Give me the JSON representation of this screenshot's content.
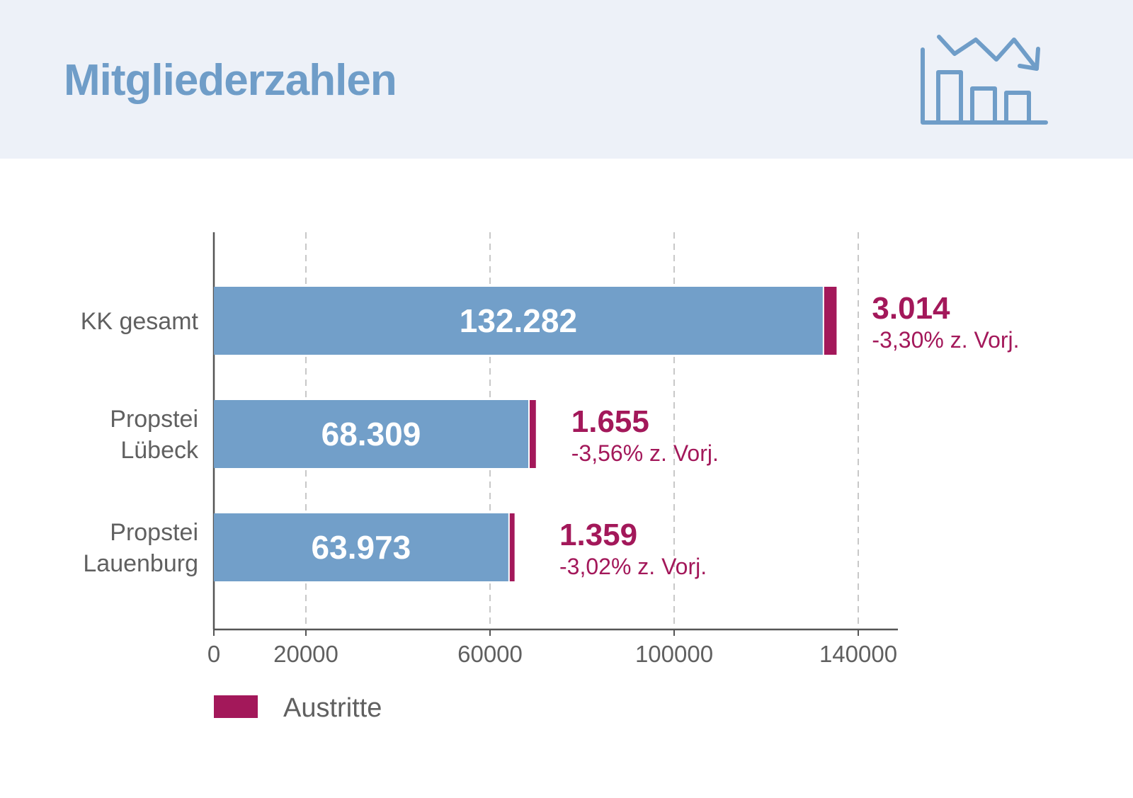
{
  "header": {
    "title": "Mitgliederzahlen",
    "icon": "declining-bar-chart-icon"
  },
  "chart_data": {
    "type": "bar",
    "orientation": "horizontal",
    "stacked": true,
    "categories": [
      [
        "KK gesamt"
      ],
      [
        "Propstei",
        "Lübeck"
      ],
      [
        "Propstei",
        "Lauenburg"
      ]
    ],
    "series": [
      {
        "values": [
          132282,
          68309,
          63973
        ],
        "labels": [
          "132.282",
          "68.309",
          "63.973"
        ],
        "color": "#729fc9"
      },
      {
        "name": "Austritte",
        "values": [
          3014,
          1655,
          1359
        ],
        "color": "#a3185a"
      }
    ],
    "annotations": [
      {
        "value": "3.014",
        "change": "-3,30% z. Vorj."
      },
      {
        "value": "1.655",
        "change": "-3,56% z. Vorj."
      },
      {
        "value": "1.359",
        "change": "-3,02% z. Vorj."
      }
    ],
    "xticks": [
      0,
      20000,
      60000,
      100000,
      140000
    ],
    "xlim": [
      0,
      148000
    ],
    "grid": "vertical dashed",
    "legend": {
      "position": "bottom-left",
      "label": "Austritte"
    }
  }
}
